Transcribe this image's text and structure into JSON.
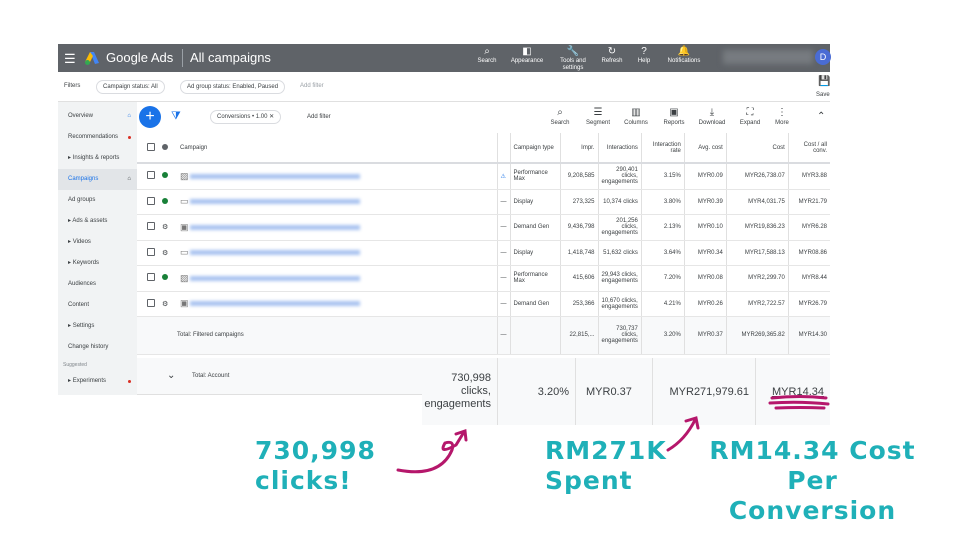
{
  "header": {
    "brand": "Google Ads",
    "page": "All campaigns",
    "avatar": "D",
    "actions": [
      {
        "icon": "search-icon",
        "label": "Search"
      },
      {
        "icon": "appearance-icon",
        "label": "Appearance"
      },
      {
        "icon": "wrench-icon",
        "label": "Tools and settings"
      },
      {
        "icon": "refresh-icon",
        "label": "Refresh"
      },
      {
        "icon": "help-icon",
        "label": "Help"
      },
      {
        "icon": "bell-icon",
        "label": "Notifications"
      }
    ]
  },
  "filters": {
    "label": "Filters",
    "chips": [
      "Campaign status: All",
      "Ad group status: Enabled, Paused"
    ],
    "add": "Add filter",
    "save": "Save"
  },
  "sidebar": {
    "items": [
      "Overview",
      "Recommendations",
      "Insights & reports",
      "Campaigns",
      "Ad groups",
      "Ads & assets",
      "Videos",
      "Keywords",
      "Audiences",
      "Content",
      "Settings",
      "Change history"
    ],
    "suggested": "Suggested",
    "experiments": "Experiments"
  },
  "toolbar": {
    "filter_chip": "Conversions • 1.00",
    "add_filter": "Add filter",
    "tools": [
      "Search",
      "Segment",
      "Columns",
      "Reports",
      "Download",
      "Expand",
      "More"
    ]
  },
  "table": {
    "headers": [
      "Campaign",
      "",
      "Campaign type",
      "Impr.",
      "Interactions",
      "Interaction rate",
      "Avg. cost",
      "Cost",
      "Cost / all conv."
    ],
    "rows": [
      {
        "status": "enabled",
        "type": "Performance Max",
        "impr": "9,208,585",
        "interactions": "290,401 clicks, engagements",
        "rate": "3.15%",
        "avg": "MYR0.09",
        "cost": "MYR26,738.07",
        "cpc": "MYR3.88"
      },
      {
        "status": "enabled",
        "type": "Display",
        "impr": "273,325",
        "interactions": "10,374 clicks",
        "rate": "3.80%",
        "avg": "MYR0.39",
        "cost": "MYR4,031.75",
        "cpc": "MYR21.79"
      },
      {
        "status": "paused",
        "type": "Demand Gen",
        "impr": "9,436,798",
        "interactions": "201,256 clicks, engagements",
        "rate": "2.13%",
        "avg": "MYR0.10",
        "cost": "MYR19,836.23",
        "cpc": "MYR6.28"
      },
      {
        "status": "paused",
        "type": "Display",
        "impr": "1,418,748",
        "interactions": "51,632 clicks",
        "rate": "3.64%",
        "avg": "MYR0.34",
        "cost": "MYR17,588.13",
        "cpc": "MYR08.86"
      },
      {
        "status": "enabled",
        "type": "Performance Max",
        "impr": "415,606",
        "interactions": "29,943 clicks, engagements",
        "rate": "7.20%",
        "avg": "MYR0.08",
        "cost": "MYR2,299.70",
        "cpc": "MYR8.44"
      },
      {
        "status": "paused",
        "type": "Demand Gen",
        "impr": "253,366",
        "interactions": "10,670 clicks, engagements",
        "rate": "4.21%",
        "avg": "MYR0.26",
        "cost": "MYR2,722.57",
        "cpc": "MYR26.79"
      }
    ],
    "total_filtered": {
      "label": "Total: Filtered campaigns",
      "dash": "—",
      "impr": "22,815,...",
      "interactions": "730,737 clicks, engagements",
      "rate": "3.20%",
      "avg": "MYR0.37",
      "cost": "MYR269,365.82",
      "cpc": "MYR14.30"
    },
    "total_account": {
      "label": "Total: Account",
      "interactions": "730,998 clicks, engagements",
      "rate": "3.20%",
      "avg": "MYR0.37",
      "cost": "MYR271,979.61",
      "cpc": "MYR14.34"
    }
  },
  "annotations": {
    "clicks": "730,998 clicks!",
    "spent": "RM271K Spent",
    "cpc": "RM14.34 Cost Per Conversion"
  },
  "colors": {
    "header": "#5f6368",
    "accent": "#1a73e8",
    "annotation_text": "#1fb0b8",
    "annotation_ink": "#b5176b",
    "enabled": "#188038"
  }
}
